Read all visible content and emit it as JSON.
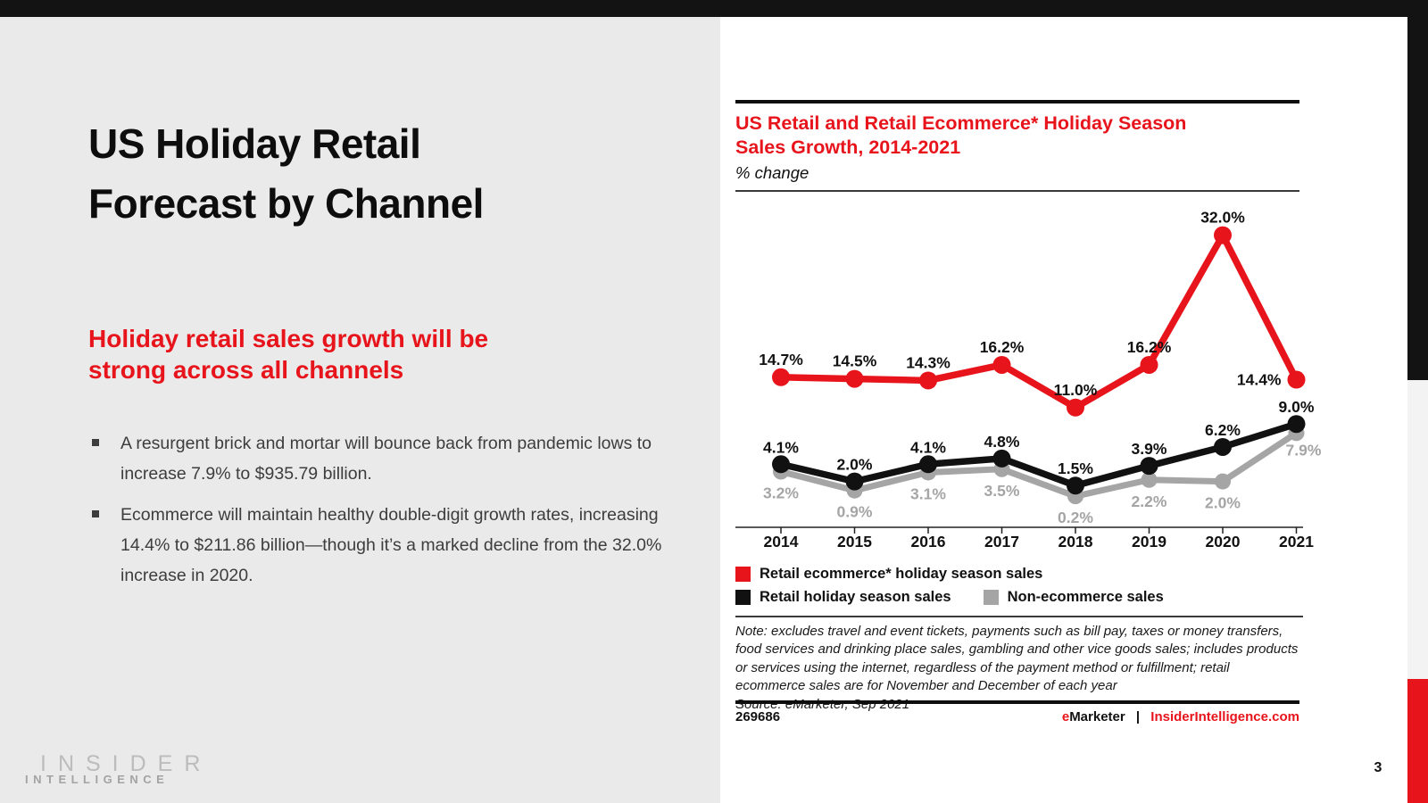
{
  "colors": {
    "accent_red": "#e8141c",
    "series_black": "#111111",
    "series_gray": "#a5a5a5",
    "left_background": "#eaeaea",
    "top_bar": "#131313"
  },
  "page": {
    "number": "3"
  },
  "left": {
    "title_lines": [
      "US Holiday Retail",
      "Forecast by Channel"
    ],
    "heading_lines": [
      "Holiday retail sales growth will be",
      "strong across all channels"
    ],
    "bullets": [
      "A resurgent brick and mortar will bounce back from pandemic lows to increase 7.9% to $935.79 billion.",
      "Ecommerce will maintain healthy double-digit growth rates, increasing 14.4% to $211.86 billion—though it’s a marked decline from the 32.0% increase in 2020."
    ],
    "logo": {
      "line1": "INSIDER",
      "line2": "INTELLIGENCE"
    }
  },
  "chart": {
    "title_lines": [
      "US Retail and Retail Ecommerce* Holiday Season",
      "Sales Growth, 2014-2021"
    ],
    "subtitle": "% change",
    "note": "Note: excludes travel and event tickets, payments such as bill pay, taxes or money transfers, food services and drinking place sales, gambling and other vice goods sales; includes products or services using the internet, regardless of the payment method or fulfillment; retail ecommerce sales are for November and December of each year",
    "source": "Source: eMarketer, Sep 2021",
    "footer": {
      "code": "269686",
      "brand_e": "e",
      "brand_rest": "Marketer",
      "separator": "|",
      "site": "InsiderIntelligence.com"
    }
  },
  "chart_data": {
    "type": "line",
    "title": "US Retail and Retail Ecommerce* Holiday Season Sales Growth, 2014-2021",
    "ylabel": "% change",
    "categories": [
      "2014",
      "2015",
      "2016",
      "2017",
      "2018",
      "2019",
      "2020",
      "2021"
    ],
    "series": [
      {
        "name": "Retail ecommerce* holiday season sales",
        "color": "#e8141c",
        "values": [
          14.7,
          14.5,
          14.3,
          16.2,
          11.0,
          16.2,
          32.0,
          14.4
        ]
      },
      {
        "name": "Retail holiday season sales",
        "color": "#111111",
        "values": [
          4.1,
          2.0,
          4.1,
          4.8,
          1.5,
          3.9,
          6.2,
          9.0
        ]
      },
      {
        "name": "Non-ecommerce sales",
        "color": "#a5a5a5",
        "values": [
          3.2,
          0.9,
          3.1,
          3.5,
          0.2,
          2.2,
          2.0,
          7.9
        ]
      }
    ],
    "ylim": [
      -4,
      36
    ],
    "grid": false,
    "legend_position": "bottom",
    "data_label_format": "0.0%"
  }
}
